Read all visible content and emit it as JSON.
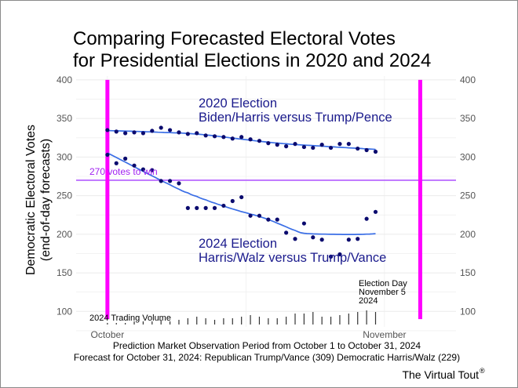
{
  "title_line1": "Comparing Forecasted Electoral Votes",
  "title_line2": "for Presidential Elections in 2020 and 2024",
  "ylabel_line1": "Democratic Electoral Votes",
  "ylabel_line2": "(end-of-day forecasts)",
  "xlabel": "Prediction Market Observation Period from October 1 to October 31, 2024",
  "footnote": "Forecast for October 31, 2024: Republican Trump/Vance (309)  Democratic Harris/Walz (229)",
  "credit": "The Virtual Tout",
  "credit_mark": "®",
  "annotations": {
    "win_line_label": "270 votes to win",
    "label_2020_line1": "2020 Election",
    "label_2020_line2": "Biden/Harris versus Trump/Pence",
    "label_2024_line1": "2024 Election",
    "label_2024_line2": "Harris/Walz versus Trump/Vance",
    "election_day_line1": "Election Day",
    "election_day_line2": "November 5",
    "election_day_line3": "2024",
    "volume_label": "2024 Trading Volume"
  },
  "colors": {
    "points": "#0a0a6e",
    "smooth": "#3a6ee6",
    "win_line": "#b25cff",
    "win_label": "#a020f0",
    "markers": "#ff00ff",
    "series_label": "#1a1a8c",
    "grid": "#ebebeb",
    "volume": "#333333"
  },
  "chart_data": {
    "type": "scatter",
    "x_unit": "day of October (Nov 1 = 32, Nov 5 = 36)",
    "x_ticks": [
      {
        "label": "October",
        "x": 1
      },
      {
        "label": "November",
        "x": 32
      }
    ],
    "ylim": [
      80,
      405
    ],
    "y_ticks": [
      100,
      150,
      200,
      250,
      300,
      350,
      400
    ],
    "grid": true,
    "secondary_y_axis": true,
    "reference_line": {
      "y": 270,
      "label": "270 votes to win"
    },
    "vertical_markers": [
      {
        "x": 1,
        "label": ""
      },
      {
        "x": 36,
        "label": "Election Day November 5 2024"
      }
    ],
    "series": [
      {
        "name": "2020 Election",
        "x": [
          1,
          2,
          3,
          4,
          5,
          6,
          7,
          8,
          9,
          10,
          11,
          12,
          13,
          14,
          15,
          16,
          17,
          18,
          19,
          20,
          21,
          22,
          23,
          24,
          25,
          26,
          27,
          28,
          29,
          30,
          31
        ],
        "values": [
          335,
          333,
          331,
          332,
          331,
          334,
          338,
          335,
          332,
          330,
          331,
          328,
          327,
          326,
          324,
          326,
          323,
          321,
          318,
          316,
          314,
          317,
          313,
          312,
          316,
          312,
          317,
          317,
          311,
          309,
          307
        ]
      },
      {
        "name": "2024 Election",
        "x": [
          1,
          2,
          3,
          4,
          5,
          6,
          7,
          8,
          9,
          10,
          11,
          12,
          13,
          14,
          15,
          16,
          17,
          18,
          19,
          20,
          21,
          22,
          23,
          24,
          25,
          26,
          27,
          28,
          29,
          30,
          31
        ],
        "values": [
          303,
          292,
          298,
          289,
          284,
          283,
          269,
          269,
          266,
          234,
          234,
          234,
          234,
          237,
          243,
          248,
          224,
          224,
          219,
          219,
          202,
          194,
          214,
          196,
          193,
          171,
          174,
          193,
          194,
          220,
          229
        ]
      }
    ],
    "volume": {
      "name": "2024 Trading Volume",
      "x": [
        1,
        2,
        3,
        4,
        5,
        6,
        7,
        8,
        9,
        10,
        11,
        12,
        13,
        14,
        15,
        16,
        17,
        18,
        19,
        20,
        21,
        22,
        23,
        24,
        25,
        26,
        27,
        28,
        29,
        30,
        31
      ],
      "values": [
        1,
        1,
        1,
        2,
        2,
        2,
        3,
        2,
        3,
        4,
        5,
        4,
        3,
        4,
        4,
        5,
        6,
        5,
        4,
        4,
        5,
        7,
        7,
        8,
        5,
        5,
        6,
        7,
        8,
        9,
        8
      ]
    }
  }
}
